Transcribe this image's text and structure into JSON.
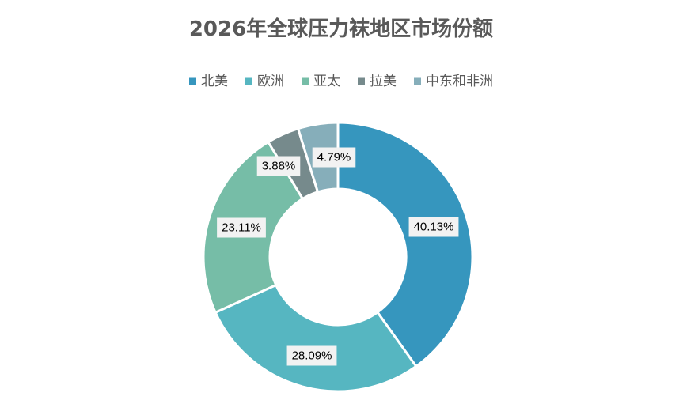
{
  "chart_data": {
    "type": "pie",
    "style": "donut",
    "title": "2026年全球压力袜地区市场份额",
    "legend_position": "top",
    "categories": [
      "北美",
      "欧洲",
      "亚太",
      "拉美",
      "中东和非洲"
    ],
    "values": [
      40.13,
      28.09,
      23.11,
      3.88,
      4.79
    ],
    "labels": [
      "40.13%",
      "28.09%",
      "23.11%",
      "3.88%",
      "4.79%"
    ],
    "colors": [
      "#3696BE",
      "#56B6C1",
      "#76BDA7",
      "#768A8C",
      "#86AEBA"
    ]
  }
}
